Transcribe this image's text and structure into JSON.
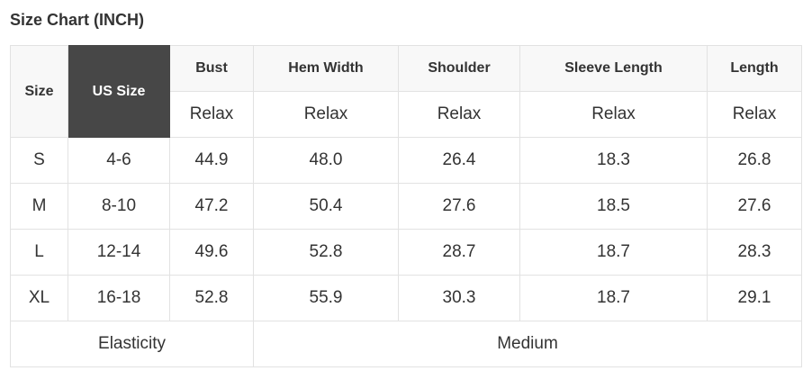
{
  "title": "Size Chart (INCH)",
  "headers": [
    "Size",
    "US Size",
    "Bust",
    "Hem Width",
    "Shoulder",
    "Sleeve Length",
    "Length"
  ],
  "fit": [
    "Relax",
    "Relax",
    "Relax",
    "Relax",
    "Relax"
  ],
  "rows": [
    [
      "S",
      "4-6",
      "44.9",
      "48.0",
      "26.4",
      "18.3",
      "26.8"
    ],
    [
      "M",
      "8-10",
      "47.2",
      "50.4",
      "27.6",
      "18.5",
      "27.6"
    ],
    [
      "L",
      "12-14",
      "49.6",
      "52.8",
      "28.7",
      "18.7",
      "28.3"
    ],
    [
      "XL",
      "16-18",
      "52.8",
      "55.9",
      "30.3",
      "18.7",
      "29.1"
    ]
  ],
  "footer": {
    "label": "Elasticity",
    "value": "Medium"
  },
  "colors": {
    "highlight_header": "#474747",
    "header_bg": "#f8f8f8",
    "border": "#e2e2e2"
  }
}
